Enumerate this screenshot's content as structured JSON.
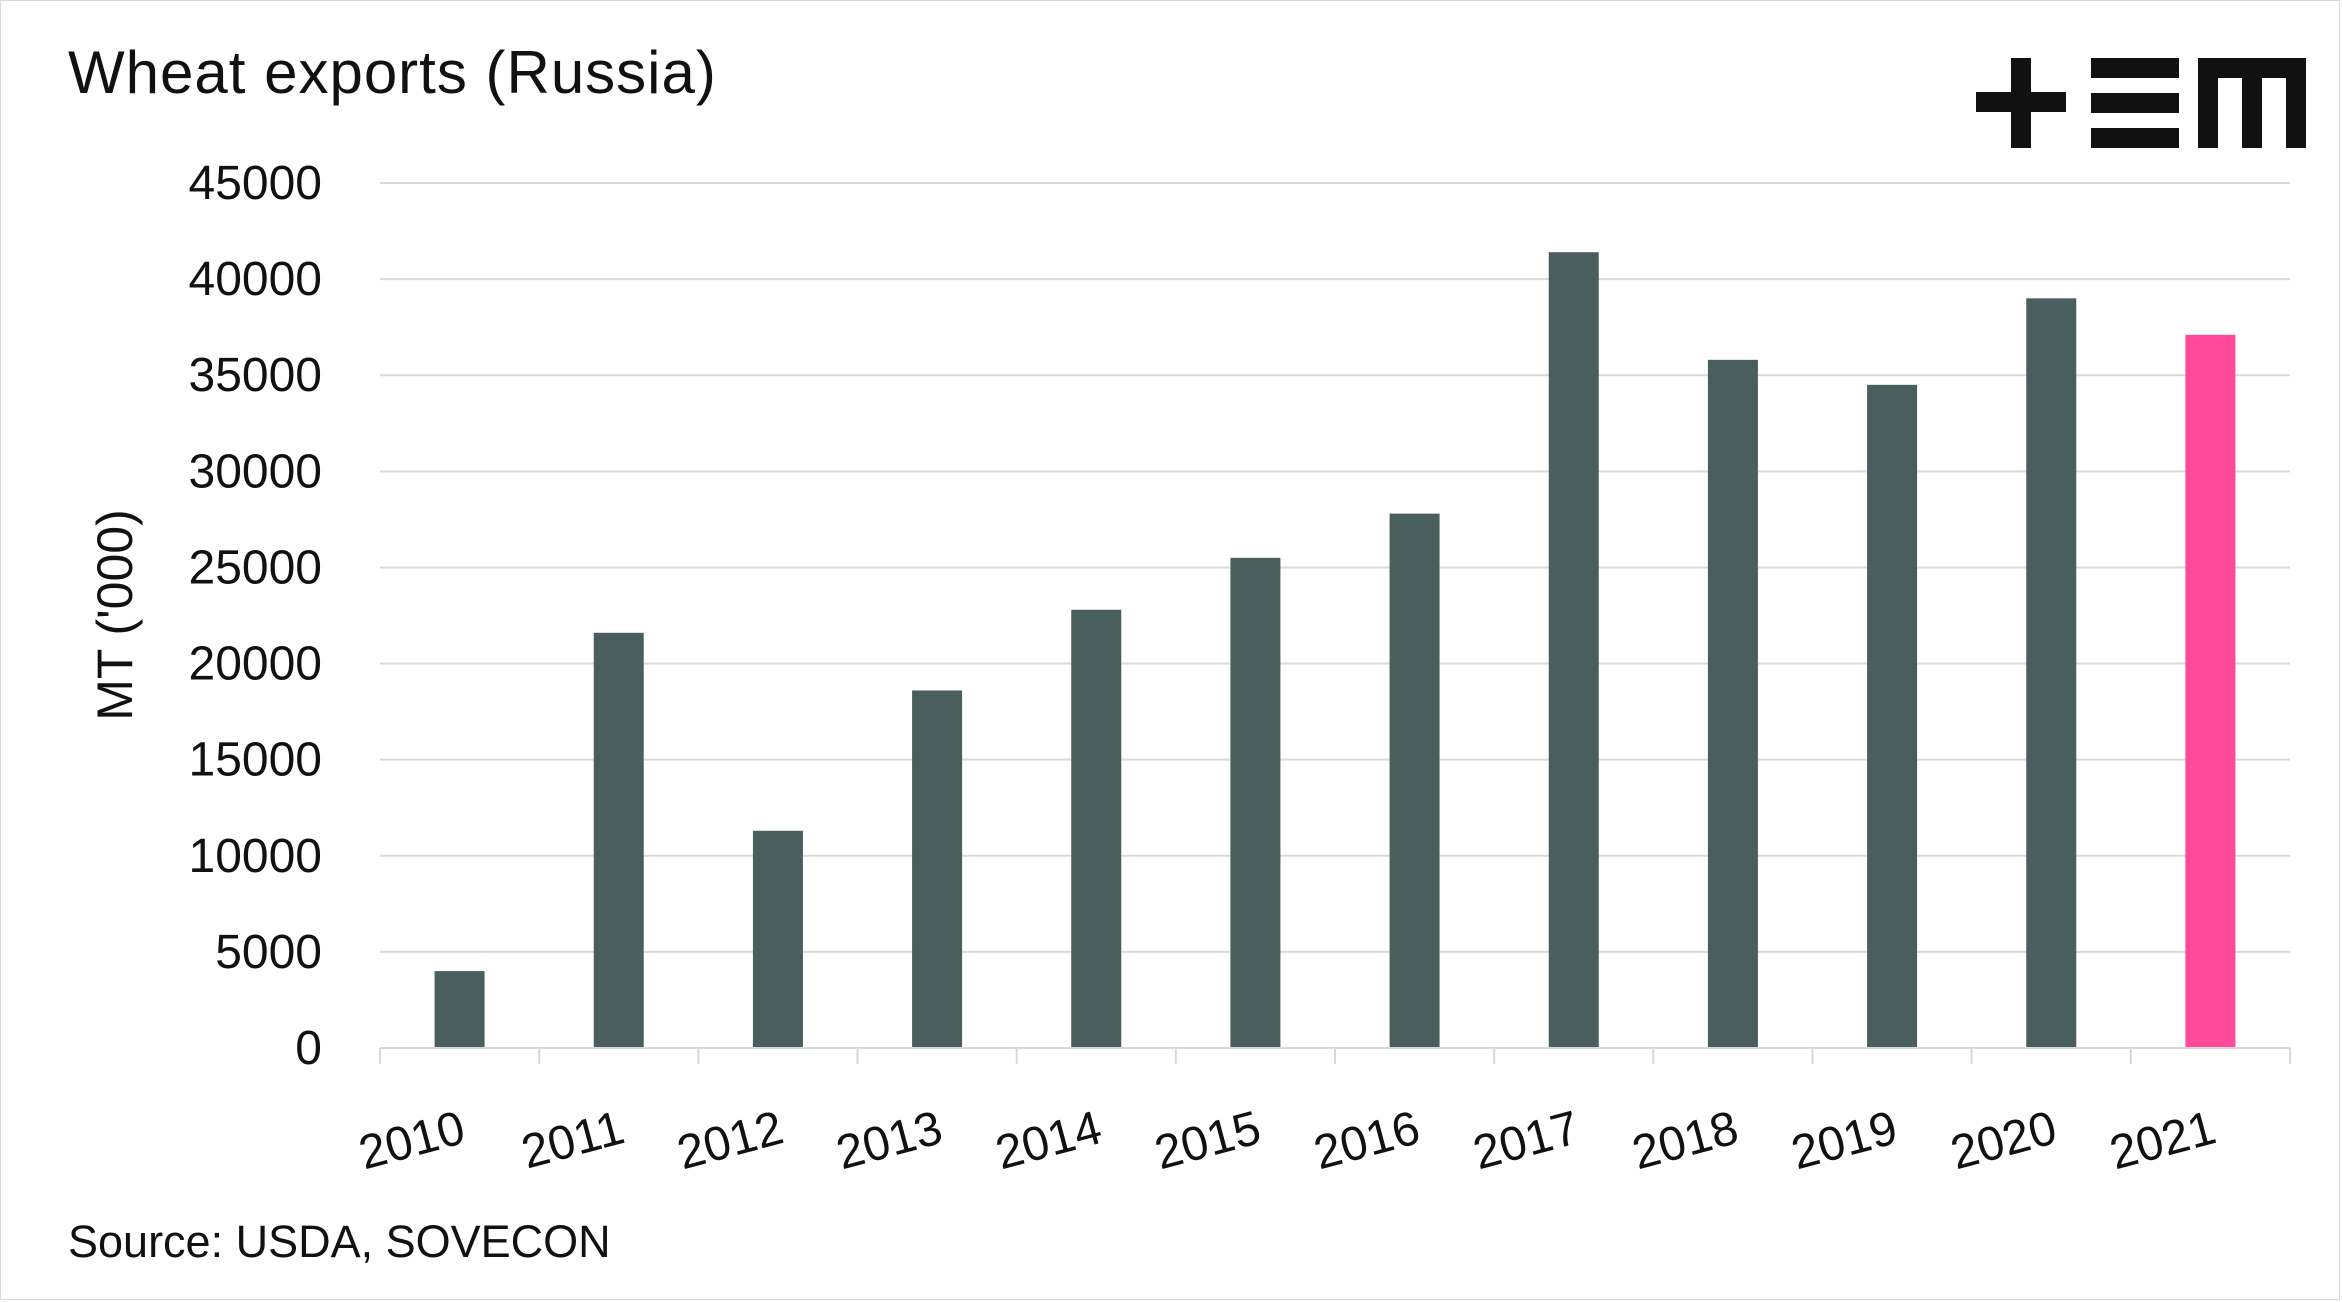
{
  "title": "Wheat exports (Russia)",
  "source": "Source: USDA, SOVECON",
  "logo": {
    "text": "+EM",
    "icon": "plus-em-logo"
  },
  "colors": {
    "bar": "#4a5e60",
    "highlight": "#ff4a9a",
    "grid": "#d9d9d9",
    "text": "#111111"
  },
  "chart_data": {
    "type": "bar",
    "title": "Wheat exports (Russia)",
    "ylabel": "MT ('000)",
    "xlabel": "",
    "categories": [
      "2010",
      "2011",
      "2012",
      "2013",
      "2014",
      "2015",
      "2016",
      "2017",
      "2018",
      "2019",
      "2020",
      "2021"
    ],
    "values": [
      4000,
      21600,
      11300,
      18600,
      22800,
      25500,
      27800,
      41400,
      35800,
      34500,
      39000,
      37100
    ],
    "highlight_category": "2021",
    "ylim": [
      0,
      45000
    ],
    "yticks": [
      "0",
      "5000",
      "10000",
      "15000",
      "20000",
      "25000",
      "30000",
      "35000",
      "40000",
      "45000"
    ],
    "grid": true,
    "legend": "none"
  }
}
